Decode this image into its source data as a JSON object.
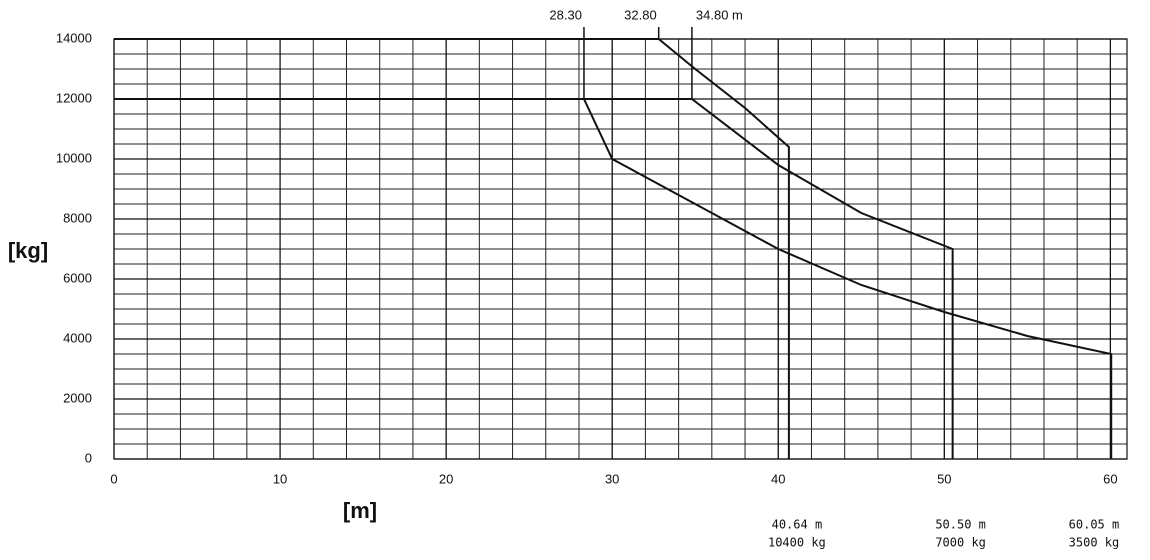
{
  "chart_data": {
    "type": "line",
    "y_label": "[kg]",
    "x_label": "[m]",
    "xlim": [
      0,
      61
    ],
    "ylim": [
      0,
      14000
    ],
    "xticks": [
      0,
      10,
      20,
      30,
      40,
      50,
      60
    ],
    "yticks": [
      0,
      2000,
      4000,
      6000,
      8000,
      10000,
      12000,
      14000
    ],
    "grid": true,
    "grid_step": {
      "x": 2,
      "y": 500
    },
    "series": [
      {
        "color": "#111111",
        "x": [
          0,
          32.8,
          35,
          38,
          40.64,
          40.64
        ],
        "values": [
          14000,
          14000,
          13000,
          11700,
          10400,
          0
        ]
      },
      {
        "color": "#111111",
        "x": [
          0,
          34.8,
          40,
          45,
          50.5,
          50.5
        ],
        "values": [
          12000,
          12000,
          9800,
          8200,
          7000,
          0
        ]
      },
      {
        "color": "#111111",
        "x": [
          0,
          28.3,
          30,
          35,
          40,
          45,
          50,
          55,
          60.05,
          60.05
        ],
        "values": [
          12000,
          12000,
          10000,
          8500,
          7000,
          5800,
          4900,
          4100,
          3500,
          0
        ]
      }
    ],
    "top_annotations": [
      {
        "x": 28.3,
        "label": "28.30"
      },
      {
        "x": 32.8,
        "label": "32.80"
      },
      {
        "x": 34.8,
        "label": "34.80 m"
      }
    ],
    "bottom_annotations": [
      {
        "x": 40.64,
        "lines": [
          "40.64 m",
          "10400 kg"
        ]
      },
      {
        "x": 50.5,
        "lines": [
          "50.50 m",
          "7000 kg"
        ]
      },
      {
        "x": 60.05,
        "lines": [
          "60.05 m",
          "3500 kg"
        ]
      }
    ]
  }
}
